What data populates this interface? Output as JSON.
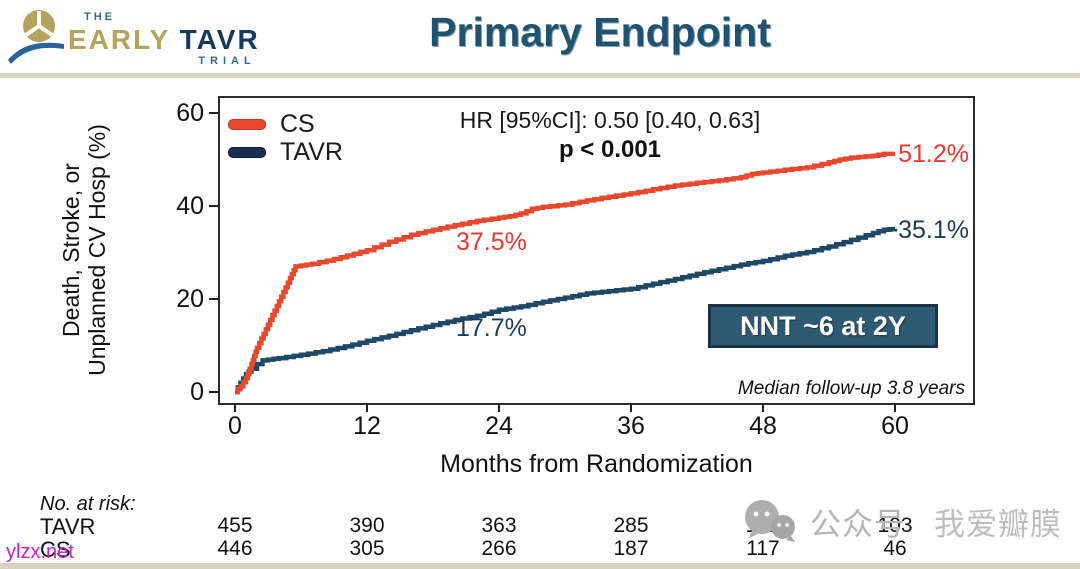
{
  "header": {
    "logo": {
      "the": "THE",
      "early": "EARLY",
      "tavr": "TAVR",
      "trial": "TRIAL"
    },
    "title": "Primary Endpoint"
  },
  "chart_data": {
    "type": "line",
    "subtype": "kaplan-meier-step",
    "title": "Primary Endpoint",
    "xlabel": "Months from Randomization",
    "ylabel": "Death, Stroke, or Unplanned CV Hosp (%)",
    "ylabel_lines": [
      "Death, Stroke, or",
      "Unplanned CV Hosp (%)"
    ],
    "xlim": [
      0,
      62
    ],
    "ylim": [
      0,
      63
    ],
    "xticks": [
      0,
      12,
      24,
      36,
      48,
      60
    ],
    "yticks": [
      0,
      20,
      40,
      60
    ],
    "grid": false,
    "legend_position": "top-left",
    "stats": {
      "hr_line": "HR [95%CI]: 0.50 [0.40, 0.63]",
      "p_line": "p < 0.001"
    },
    "annotations": {
      "cs_24mo_label": "37.5%",
      "tavr_24mo_label": "17.7%",
      "cs_60mo_label": "51.2%",
      "tavr_60mo_label": "35.1%",
      "nnt_box": "NNT ~6 at 2Y",
      "median_followup": "Median follow-up 3.8 years"
    },
    "colors": {
      "cs": "#e8492e",
      "tavr": "#1f4864",
      "nnt_box_fill": "#2e5a73",
      "nnt_box_border": "#1a3348"
    },
    "legend": [
      {
        "label": "CS",
        "color": "#e8492e"
      },
      {
        "label": "TAVR",
        "color": "#1a2d50"
      }
    ],
    "series": [
      {
        "name": "TAVR",
        "color": "#1f4864",
        "key_values": {
          "24mo_pct": 17.7,
          "60mo_pct": 35.1
        },
        "points": [
          [
            0,
            0
          ],
          [
            0.5,
            2
          ],
          [
            1,
            3.8
          ],
          [
            1.5,
            5
          ],
          [
            2,
            6
          ],
          [
            2.5,
            6.8
          ],
          [
            4,
            7.3
          ],
          [
            6,
            8
          ],
          [
            8,
            8.8
          ],
          [
            10,
            9.8
          ],
          [
            12,
            11
          ],
          [
            14,
            12.1
          ],
          [
            16,
            13.3
          ],
          [
            18,
            14.4
          ],
          [
            20,
            15.5
          ],
          [
            22,
            16.4
          ],
          [
            24,
            17.7
          ],
          [
            26,
            18.4
          ],
          [
            28,
            19.4
          ],
          [
            30,
            20.3
          ],
          [
            32,
            21.2
          ],
          [
            34,
            21.7
          ],
          [
            36,
            22.2
          ],
          [
            38,
            23.3
          ],
          [
            40,
            24.3
          ],
          [
            42,
            25.4
          ],
          [
            44,
            26.4
          ],
          [
            46,
            27.4
          ],
          [
            48,
            28.2
          ],
          [
            50,
            29.3
          ],
          [
            52,
            30.1
          ],
          [
            54,
            31.3
          ],
          [
            56,
            32.7
          ],
          [
            58,
            34.2
          ],
          [
            59,
            34.9
          ],
          [
            60,
            35.1
          ]
        ]
      },
      {
        "name": "CS",
        "color": "#e8492e",
        "key_values": {
          "24mo_pct": 37.5,
          "60mo_pct": 51.2
        },
        "points": [
          [
            0,
            0
          ],
          [
            0.5,
            1.2
          ],
          [
            1,
            3
          ],
          [
            1.5,
            6
          ],
          [
            2,
            9.5
          ],
          [
            3,
            14.5
          ],
          [
            4,
            19.5
          ],
          [
            5,
            24.5
          ],
          [
            5.5,
            27
          ],
          [
            7,
            27.6
          ],
          [
            9,
            28.6
          ],
          [
            12,
            30.5
          ],
          [
            14,
            32.3
          ],
          [
            16,
            33.8
          ],
          [
            18,
            34.9
          ],
          [
            20,
            35.9
          ],
          [
            22,
            36.8
          ],
          [
            24,
            37.5
          ],
          [
            25,
            37.8
          ],
          [
            26,
            38.4
          ],
          [
            27,
            39.4
          ],
          [
            28,
            39.8
          ],
          [
            30,
            40.3
          ],
          [
            32,
            41.2
          ],
          [
            34,
            42
          ],
          [
            36,
            42.7
          ],
          [
            38,
            43.6
          ],
          [
            40,
            44.4
          ],
          [
            42,
            45
          ],
          [
            44,
            45.5
          ],
          [
            46,
            46.2
          ],
          [
            47,
            46.9
          ],
          [
            48,
            47.2
          ],
          [
            50,
            47.8
          ],
          [
            52,
            48.3
          ],
          [
            54,
            49.4
          ],
          [
            55,
            50
          ],
          [
            56,
            50.4
          ],
          [
            58,
            50.8
          ],
          [
            59,
            51.2
          ],
          [
            60,
            51.2
          ]
        ]
      }
    ]
  },
  "risk_table": {
    "title": "No. at risk:",
    "columns": [
      0,
      12,
      24,
      36,
      48,
      60
    ],
    "rows": [
      {
        "label": "TAVR",
        "values": [
          "455",
          "390",
          "363",
          "285",
          "142",
          "103"
        ]
      },
      {
        "label": "CS",
        "values": [
          "446",
          "305",
          "266",
          "187",
          "117",
          "46"
        ]
      }
    ]
  },
  "watermark": {
    "wechat_label": "公众号",
    "account_name": "我爱瓣膜",
    "site": "ylzx.net"
  }
}
